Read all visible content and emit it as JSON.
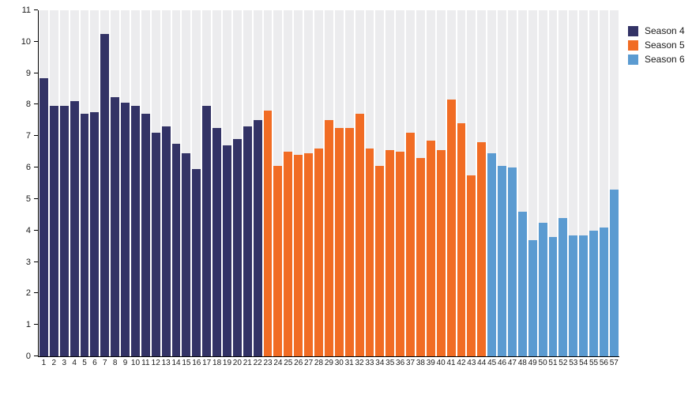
{
  "chart_data": {
    "type": "bar",
    "title": "",
    "xlabel": "",
    "ylabel": "",
    "ylim": [
      0,
      11
    ],
    "yticks": [
      0,
      1,
      2,
      3,
      4,
      5,
      6,
      7,
      8,
      9,
      10,
      11
    ],
    "grid": "vertical column stripes, no horizontal gridlines",
    "legend_position": "outside top-right",
    "plot_background": {
      "stripe_color": "#ECECEE",
      "gap_color": "#FFFFFF"
    },
    "axis_color": "#000000",
    "x_labels": [
      "1",
      "2",
      "3",
      "4",
      "5",
      "6",
      "7",
      "8",
      "9",
      "10",
      "11",
      "12",
      "13",
      "14",
      "15",
      "16",
      "17",
      "18",
      "19",
      "20",
      "21",
      "22",
      "23",
      "24",
      "25",
      "26",
      "27",
      "28",
      "29",
      "30",
      "31",
      "32",
      "33",
      "34",
      "35",
      "36",
      "37",
      "38",
      "39",
      "40",
      "41",
      "42",
      "43",
      "44",
      "45",
      "46",
      "47",
      "48",
      "49",
      "50",
      "51",
      "52",
      "53",
      "54",
      "55",
      "56",
      "57"
    ],
    "series": [
      {
        "name": "Season 4",
        "color": "#333366",
        "x_range": [
          1,
          22
        ],
        "values": [
          8.85,
          7.95,
          7.95,
          8.1,
          7.7,
          7.75,
          10.25,
          8.25,
          8.05,
          7.95,
          7.7,
          7.1,
          7.3,
          6.75,
          6.45,
          5.95,
          7.95,
          7.25,
          6.7,
          6.9,
          7.3,
          7.5
        ]
      },
      {
        "name": "Season 5",
        "color": "#F16C24",
        "x_range": [
          23,
          44
        ],
        "values": [
          7.8,
          6.05,
          6.5,
          6.4,
          6.45,
          6.6,
          7.5,
          7.25,
          7.25,
          7.7,
          6.6,
          6.05,
          6.55,
          6.5,
          7.1,
          6.3,
          6.85,
          6.55,
          8.15,
          7.4,
          5.75,
          6.8
        ]
      },
      {
        "name": "Season 6",
        "color": "#5B9BD1",
        "x_range": [
          45,
          57
        ],
        "values": [
          6.45,
          6.05,
          6.0,
          4.6,
          3.7,
          4.25,
          3.8,
          4.4,
          3.85,
          3.85,
          4.0,
          4.1,
          5.3
        ]
      }
    ]
  }
}
